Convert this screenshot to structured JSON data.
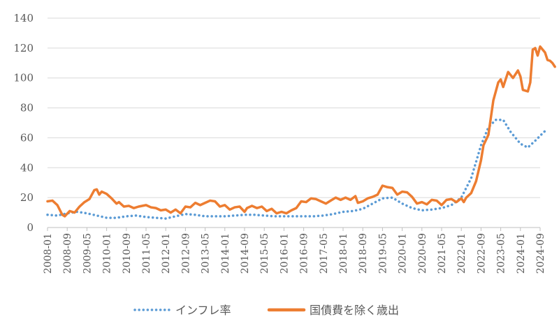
{
  "chart_data": {
    "type": "line",
    "xlabel": "",
    "ylabel": "",
    "ylim": [
      0,
      140
    ],
    "yticks": [
      0,
      20,
      40,
      60,
      80,
      100,
      120,
      140
    ],
    "grid": "horizontal",
    "legend_position": "bottom",
    "x_ticks": [
      "2008-01",
      "2008-09",
      "2009-05",
      "2010-01",
      "2010-09",
      "2011-05",
      "2012-01",
      "2012-09",
      "2013-05",
      "2014-01",
      "2014-09",
      "2015-05",
      "2016-01",
      "2016-09",
      "2017-05",
      "2018-01",
      "2018-09",
      "2019-05",
      "2020-01",
      "2020-09",
      "2021-05",
      "2022-01",
      "2022-09",
      "2023-05",
      "2024-01",
      "2024-09"
    ],
    "series": [
      {
        "name": "インフレ率",
        "color": "#5b9bd5",
        "style": "dotted",
        "points": [
          [
            "2008-01",
            8.5
          ],
          [
            "2008-05",
            8.0
          ],
          [
            "2008-09",
            9.5
          ],
          [
            "2009-01",
            10.5
          ],
          [
            "2009-05",
            9.5
          ],
          [
            "2009-09",
            8.0
          ],
          [
            "2010-01",
            6.5
          ],
          [
            "2010-05",
            6.5
          ],
          [
            "2010-09",
            7.5
          ],
          [
            "2011-01",
            8.0
          ],
          [
            "2011-05",
            7.0
          ],
          [
            "2011-09",
            6.5
          ],
          [
            "2012-01",
            6.0
          ],
          [
            "2012-05",
            7.5
          ],
          [
            "2012-09",
            9.0
          ],
          [
            "2013-01",
            8.5
          ],
          [
            "2013-05",
            7.5
          ],
          [
            "2013-09",
            7.5
          ],
          [
            "2014-01",
            7.5
          ],
          [
            "2014-05",
            8.0
          ],
          [
            "2014-09",
            8.5
          ],
          [
            "2015-01",
            8.5
          ],
          [
            "2015-05",
            8.0
          ],
          [
            "2015-09",
            7.5
          ],
          [
            "2016-01",
            7.5
          ],
          [
            "2016-05",
            7.5
          ],
          [
            "2016-09",
            7.5
          ],
          [
            "2017-01",
            7.5
          ],
          [
            "2017-05",
            8.0
          ],
          [
            "2017-09",
            9.0
          ],
          [
            "2018-01",
            10.5
          ],
          [
            "2018-05",
            11.0
          ],
          [
            "2018-09",
            12.5
          ],
          [
            "2019-01",
            16.0
          ],
          [
            "2019-05",
            19.5
          ],
          [
            "2019-09",
            20.0
          ],
          [
            "2020-01",
            16.0
          ],
          [
            "2020-05",
            13.0
          ],
          [
            "2020-09",
            11.5
          ],
          [
            "2021-01",
            12.0
          ],
          [
            "2021-05",
            13.0
          ],
          [
            "2021-09",
            15.0
          ],
          [
            "2022-01",
            20.0
          ],
          [
            "2022-05",
            33.0
          ],
          [
            "2022-09",
            55.0
          ],
          [
            "2022-12",
            67.0
          ],
          [
            "2023-03",
            72.0
          ],
          [
            "2023-06",
            72.0
          ],
          [
            "2023-09",
            64.0
          ],
          [
            "2024-01",
            56.0
          ],
          [
            "2024-04",
            53.5
          ],
          [
            "2024-07",
            58.0
          ],
          [
            "2024-10",
            63.0
          ],
          [
            "2024-12",
            66.0
          ]
        ]
      },
      {
        "name": "国債費を除く歳出",
        "color": "#ed7d31",
        "style": "solid",
        "points": [
          [
            "2008-01",
            17.5
          ],
          [
            "2008-03",
            18.0
          ],
          [
            "2008-05",
            15.0
          ],
          [
            "2008-07",
            8.5
          ],
          [
            "2008-08",
            7.5
          ],
          [
            "2008-10",
            11.0
          ],
          [
            "2008-12",
            10.0
          ],
          [
            "2009-02",
            14.0
          ],
          [
            "2009-04",
            17.0
          ],
          [
            "2009-06",
            19.0
          ],
          [
            "2009-08",
            25.0
          ],
          [
            "2009-09",
            25.5
          ],
          [
            "2009-10",
            22.0
          ],
          [
            "2009-11",
            24.0
          ],
          [
            "2010-01",
            22.5
          ],
          [
            "2010-03",
            19.5
          ],
          [
            "2010-05",
            16.0
          ],
          [
            "2010-06",
            17.0
          ],
          [
            "2010-08",
            14.0
          ],
          [
            "2010-10",
            14.5
          ],
          [
            "2010-12",
            13.0
          ],
          [
            "2011-02",
            14.0
          ],
          [
            "2011-05",
            15.0
          ],
          [
            "2011-07",
            13.5
          ],
          [
            "2011-09",
            13.0
          ],
          [
            "2011-11",
            11.5
          ],
          [
            "2012-01",
            12.0
          ],
          [
            "2012-03",
            10.0
          ],
          [
            "2012-05",
            12.0
          ],
          [
            "2012-07",
            9.5
          ],
          [
            "2012-09",
            14.0
          ],
          [
            "2012-11",
            13.5
          ],
          [
            "2013-01",
            16.5
          ],
          [
            "2013-03",
            15.0
          ],
          [
            "2013-05",
            16.5
          ],
          [
            "2013-07",
            18.0
          ],
          [
            "2013-09",
            17.5
          ],
          [
            "2013-11",
            14.0
          ],
          [
            "2014-01",
            15.0
          ],
          [
            "2014-03",
            12.0
          ],
          [
            "2014-05",
            13.5
          ],
          [
            "2014-07",
            14.0
          ],
          [
            "2014-09",
            10.5
          ],
          [
            "2014-10",
            13.0
          ],
          [
            "2014-12",
            14.5
          ],
          [
            "2015-02",
            13.0
          ],
          [
            "2015-04",
            14.0
          ],
          [
            "2015-06",
            11.0
          ],
          [
            "2015-08",
            12.5
          ],
          [
            "2015-10",
            9.5
          ],
          [
            "2015-12",
            10.5
          ],
          [
            "2016-02",
            9.5
          ],
          [
            "2016-04",
            11.5
          ],
          [
            "2016-06",
            13.0
          ],
          [
            "2016-08",
            17.5
          ],
          [
            "2016-10",
            17.0
          ],
          [
            "2016-12",
            19.5
          ],
          [
            "2017-02",
            19.0
          ],
          [
            "2017-04",
            17.5
          ],
          [
            "2017-06",
            16.0
          ],
          [
            "2017-08",
            18.0
          ],
          [
            "2017-10",
            20.0
          ],
          [
            "2017-12",
            18.5
          ],
          [
            "2018-02",
            20.0
          ],
          [
            "2018-04",
            18.5
          ],
          [
            "2018-06",
            21.0
          ],
          [
            "2018-07",
            16.5
          ],
          [
            "2018-09",
            17.5
          ],
          [
            "2018-11",
            19.5
          ],
          [
            "2019-01",
            20.5
          ],
          [
            "2019-03",
            22.0
          ],
          [
            "2019-05",
            28.0
          ],
          [
            "2019-07",
            27.0
          ],
          [
            "2019-09",
            26.5
          ],
          [
            "2019-11",
            22.0
          ],
          [
            "2020-01",
            24.0
          ],
          [
            "2020-03",
            23.5
          ],
          [
            "2020-05",
            20.5
          ],
          [
            "2020-07",
            16.0
          ],
          [
            "2020-09",
            17.0
          ],
          [
            "2020-11",
            15.5
          ],
          [
            "2021-01",
            18.5
          ],
          [
            "2021-03",
            18.0
          ],
          [
            "2021-05",
            15.0
          ],
          [
            "2021-07",
            18.5
          ],
          [
            "2021-09",
            19.0
          ],
          [
            "2021-11",
            17.0
          ],
          [
            "2022-01",
            19.5
          ],
          [
            "2022-02",
            17.0
          ],
          [
            "2022-03",
            20.0
          ],
          [
            "2022-05",
            23.0
          ],
          [
            "2022-07",
            31.0
          ],
          [
            "2022-09",
            45.0
          ],
          [
            "2022-10",
            55.0
          ],
          [
            "2022-12",
            62.0
          ],
          [
            "2023-02",
            85.0
          ],
          [
            "2023-04",
            97.0
          ],
          [
            "2023-05",
            99.0
          ],
          [
            "2023-06",
            94.0
          ],
          [
            "2023-08",
            104.0
          ],
          [
            "2023-10",
            100.0
          ],
          [
            "2023-12",
            105.0
          ],
          [
            "2024-01",
            101.0
          ],
          [
            "2024-02",
            92.0
          ],
          [
            "2024-04",
            91.0
          ],
          [
            "2024-05",
            97.0
          ],
          [
            "2024-06",
            119.0
          ],
          [
            "2024-07",
            120.0
          ],
          [
            "2024-08",
            115.0
          ],
          [
            "2024-09",
            121.0
          ],
          [
            "2024-10",
            119.0
          ],
          [
            "2024-11",
            117.0
          ],
          [
            "2024-12",
            112.0
          ],
          [
            "2025-01",
            111.5
          ],
          [
            "2025-02",
            110.0
          ],
          [
            "2025-03",
            107.5
          ]
        ]
      }
    ]
  }
}
